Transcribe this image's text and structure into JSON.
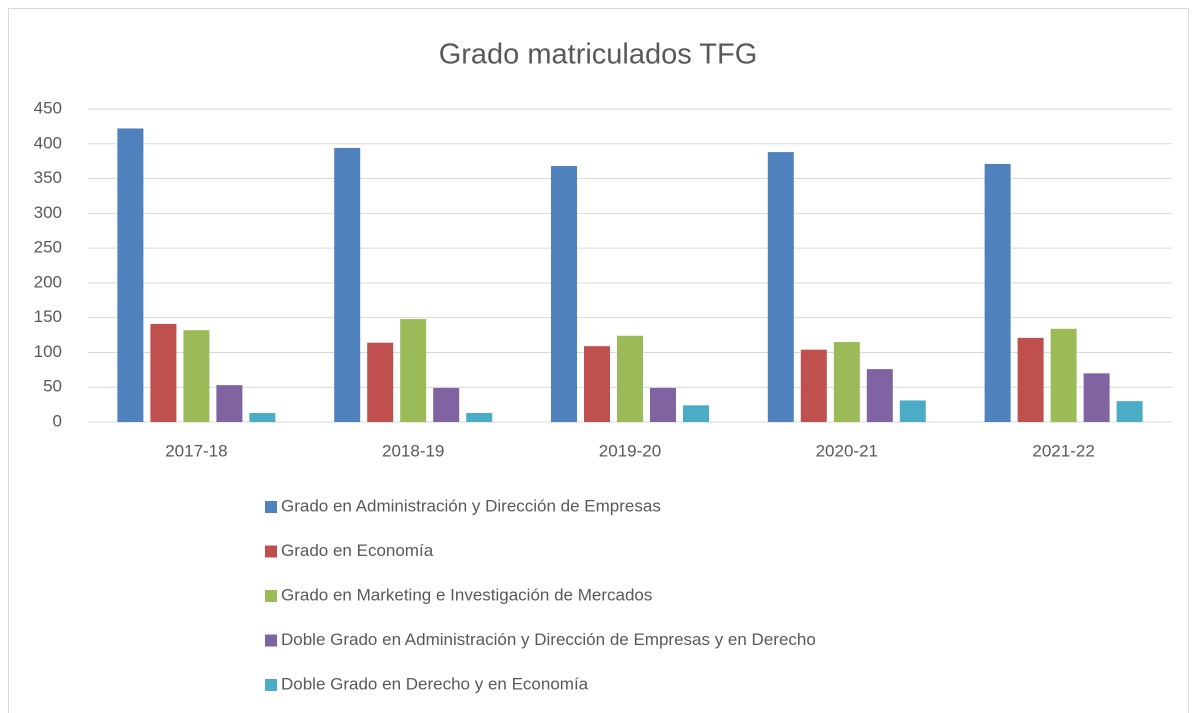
{
  "chart_data": {
    "type": "bar",
    "title": "Grado matriculados TFG",
    "categories": [
      "2017-18",
      "2018-19",
      "2019-20",
      "2020-21",
      "2021-22"
    ],
    "series": [
      {
        "name": "Grado en Administración y Dirección de Empresas",
        "color": "#4f81bd",
        "values": [
          422,
          394,
          368,
          388,
          371
        ]
      },
      {
        "name": "Grado en Economía",
        "color": "#c0504d",
        "values": [
          141,
          114,
          109,
          104,
          121
        ]
      },
      {
        "name": "Grado en Marketing e Investigación de Mercados",
        "color": "#9bbb59",
        "values": [
          132,
          148,
          124,
          115,
          134
        ]
      },
      {
        "name": "Doble Grado en Administración y Dirección de Empresas y en Derecho",
        "color": "#8064a2",
        "values": [
          53,
          49,
          49,
          76,
          70
        ]
      },
      {
        "name": "Doble Grado en Derecho y en Economía",
        "color": "#4bacc6",
        "values": [
          13,
          13,
          24,
          31,
          30
        ]
      }
    ],
    "ylim": [
      0,
      450
    ],
    "yticks": [
      0,
      50,
      100,
      150,
      200,
      250,
      300,
      350,
      400,
      450
    ],
    "grid": true,
    "legend": "bottom"
  }
}
